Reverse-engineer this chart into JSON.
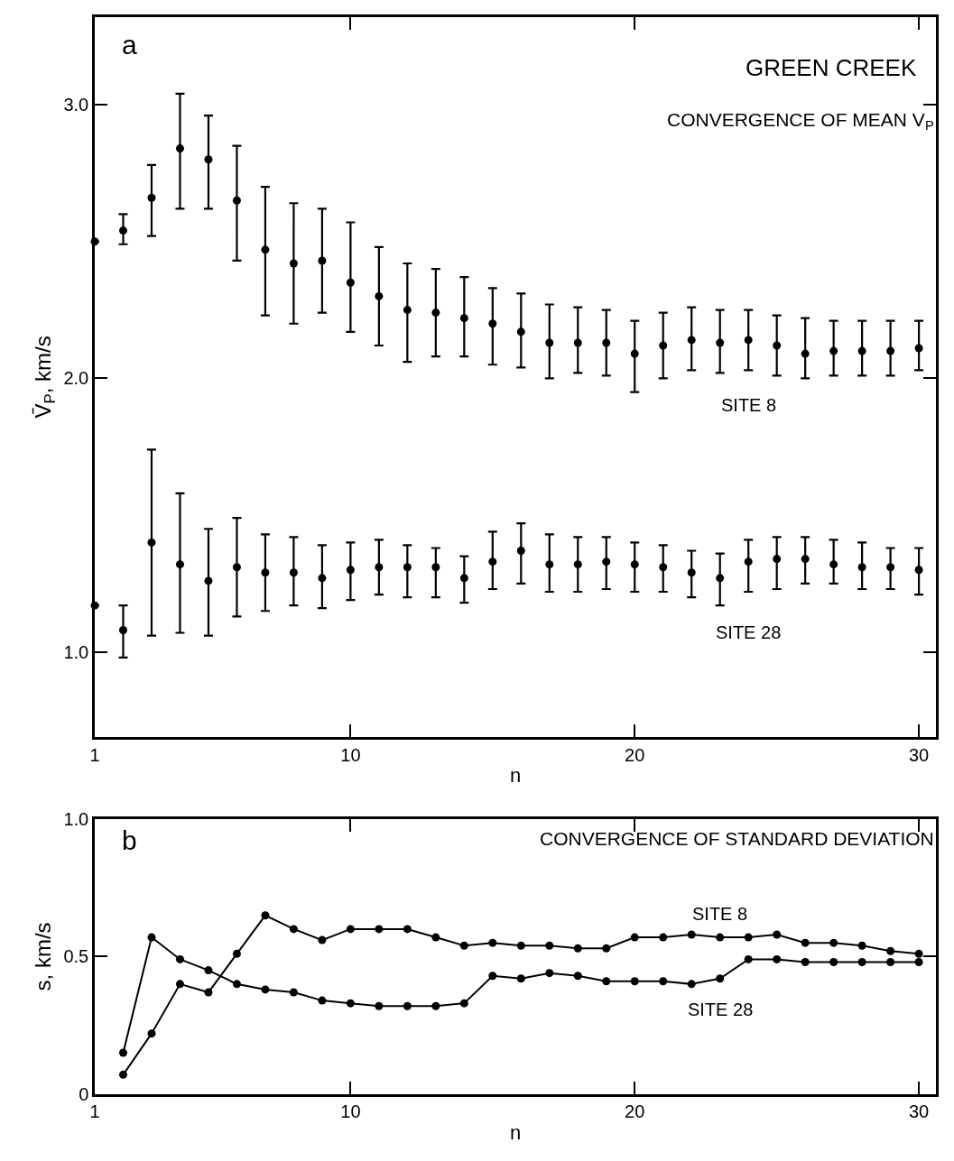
{
  "chart_data": [
    {
      "type": "scatter",
      "title": "GREEN CREEK",
      "subtitle": "CONVERGENCE OF MEAN V$_{P}$",
      "xlabel": "n",
      "ylabel": "V̄$_{P}$, km/s",
      "annotations": [
        "a"
      ],
      "xlim": [
        1,
        30.6
      ],
      "xticks": [
        1,
        10,
        20,
        30
      ],
      "ylim": [
        0.69,
        3.32
      ],
      "yticks": [
        {
          "value": 1,
          "label": "1.0"
        },
        {
          "value": 2,
          "label": "2.0"
        },
        {
          "value": 3,
          "label": "3.0"
        }
      ],
      "marker": "circle",
      "series": [
        {
          "name": "SITE 8",
          "color": "#000000",
          "x": [
            1,
            2,
            3,
            4,
            5,
            6,
            7,
            8,
            9,
            10,
            11,
            12,
            13,
            14,
            15,
            16,
            17,
            18,
            19,
            20,
            21,
            22,
            23,
            24,
            25,
            26,
            27,
            28,
            29,
            30
          ],
          "values": [
            2.5,
            2.54,
            2.66,
            2.84,
            2.8,
            2.65,
            2.47,
            2.42,
            2.43,
            2.35,
            2.3,
            2.25,
            2.24,
            2.22,
            2.2,
            2.17,
            2.13,
            2.13,
            2.13,
            2.09,
            2.12,
            2.14,
            2.13,
            2.14,
            2.12,
            2.09,
            2.1,
            2.1,
            2.1,
            2.11
          ],
          "errors": [
            null,
            [
              2.49,
              2.6
            ],
            [
              2.52,
              2.78
            ],
            [
              2.62,
              3.04
            ],
            [
              2.62,
              2.96
            ],
            [
              2.43,
              2.85
            ],
            [
              2.23,
              2.7
            ],
            [
              2.2,
              2.64
            ],
            [
              2.24,
              2.62
            ],
            [
              2.17,
              2.57
            ],
            [
              2.12,
              2.48
            ],
            [
              2.06,
              2.42
            ],
            [
              2.08,
              2.4
            ],
            [
              2.08,
              2.37
            ],
            [
              2.05,
              2.33
            ],
            [
              2.04,
              2.31
            ],
            [
              2.0,
              2.27
            ],
            [
              2.02,
              2.26
            ],
            [
              2.01,
              2.25
            ],
            [
              1.95,
              2.21
            ],
            [
              2.0,
              2.24
            ],
            [
              2.03,
              2.26
            ],
            [
              2.02,
              2.25
            ],
            [
              2.03,
              2.25
            ],
            [
              2.01,
              2.23
            ],
            [
              2.0,
              2.22
            ],
            [
              2.01,
              2.21
            ],
            [
              2.01,
              2.21
            ],
            [
              2.01,
              2.21
            ],
            [
              2.03,
              2.21
            ]
          ]
        },
        {
          "name": "SITE 28",
          "color": "#000000",
          "x": [
            1,
            2,
            3,
            4,
            5,
            6,
            7,
            8,
            9,
            10,
            11,
            12,
            13,
            14,
            15,
            16,
            17,
            18,
            19,
            20,
            21,
            22,
            23,
            24,
            25,
            26,
            27,
            28,
            29,
            30
          ],
          "values": [
            1.17,
            1.08,
            1.4,
            1.32,
            1.26,
            1.31,
            1.29,
            1.29,
            1.27,
            1.3,
            1.31,
            1.31,
            1.31,
            1.27,
            1.33,
            1.37,
            1.32,
            1.32,
            1.33,
            1.32,
            1.31,
            1.29,
            1.27,
            1.33,
            1.34,
            1.34,
            1.32,
            1.31,
            1.31,
            1.3
          ],
          "errors": [
            null,
            [
              0.98,
              1.17
            ],
            [
              1.06,
              1.74
            ],
            [
              1.07,
              1.58
            ],
            [
              1.06,
              1.45
            ],
            [
              1.13,
              1.49
            ],
            [
              1.15,
              1.43
            ],
            [
              1.17,
              1.42
            ],
            [
              1.16,
              1.39
            ],
            [
              1.19,
              1.4
            ],
            [
              1.21,
              1.41
            ],
            [
              1.2,
              1.39
            ],
            [
              1.2,
              1.38
            ],
            [
              1.18,
              1.35
            ],
            [
              1.23,
              1.44
            ],
            [
              1.25,
              1.47
            ],
            [
              1.22,
              1.43
            ],
            [
              1.22,
              1.42
            ],
            [
              1.23,
              1.42
            ],
            [
              1.22,
              1.4
            ],
            [
              1.22,
              1.39
            ],
            [
              1.2,
              1.37
            ],
            [
              1.17,
              1.36
            ],
            [
              1.22,
              1.41
            ],
            [
              1.23,
              1.42
            ],
            [
              1.25,
              1.42
            ],
            [
              1.25,
              1.41
            ],
            [
              1.23,
              1.4
            ],
            [
              1.23,
              1.38
            ],
            [
              1.21,
              1.38
            ]
          ]
        }
      ]
    },
    {
      "type": "line",
      "title": "CONVERGENCE OF STANDARD DEVIATION",
      "xlabel": "n",
      "ylabel": "s, km/s",
      "annotations": [
        "b"
      ],
      "xlim": [
        1,
        30.6
      ],
      "xticks": [
        1,
        10,
        20,
        30
      ],
      "ylim": [
        0,
        1
      ],
      "yticks": [
        0,
        0.5,
        {
          "value": 1,
          "label": "1.0"
        }
      ],
      "marker": "circle",
      "line_style": "solid",
      "series": [
        {
          "name": "SITE 8",
          "color": "#000000",
          "x": [
            2,
            3,
            4,
            5,
            6,
            7,
            8,
            9,
            10,
            11,
            12,
            13,
            14,
            15,
            16,
            17,
            18,
            19,
            20,
            21,
            22,
            23,
            24,
            25,
            26,
            27,
            28,
            29,
            30
          ],
          "values": [
            0.07,
            0.22,
            0.4,
            0.37,
            0.51,
            0.65,
            0.6,
            0.56,
            0.6,
            0.6,
            0.6,
            0.57,
            0.54,
            0.55,
            0.54,
            0.54,
            0.53,
            0.53,
            0.57,
            0.57,
            0.58,
            0.57,
            0.57,
            0.58,
            0.55,
            0.55,
            0.54,
            0.52,
            0.51
          ]
        },
        {
          "name": "SITE 28",
          "color": "#000000",
          "x": [
            2,
            3,
            4,
            5,
            6,
            7,
            8,
            9,
            10,
            11,
            12,
            13,
            14,
            15,
            16,
            17,
            18,
            19,
            20,
            21,
            22,
            23,
            24,
            25,
            26,
            27,
            28,
            29,
            30
          ],
          "values": [
            0.15,
            0.57,
            0.49,
            0.45,
            0.4,
            0.38,
            0.37,
            0.34,
            0.33,
            0.32,
            0.32,
            0.32,
            0.33,
            0.43,
            0.42,
            0.44,
            0.43,
            0.41,
            0.41,
            0.41,
            0.4,
            0.42,
            0.49,
            0.49,
            0.48,
            0.48,
            0.48,
            0.48,
            0.48
          ]
        }
      ]
    }
  ]
}
